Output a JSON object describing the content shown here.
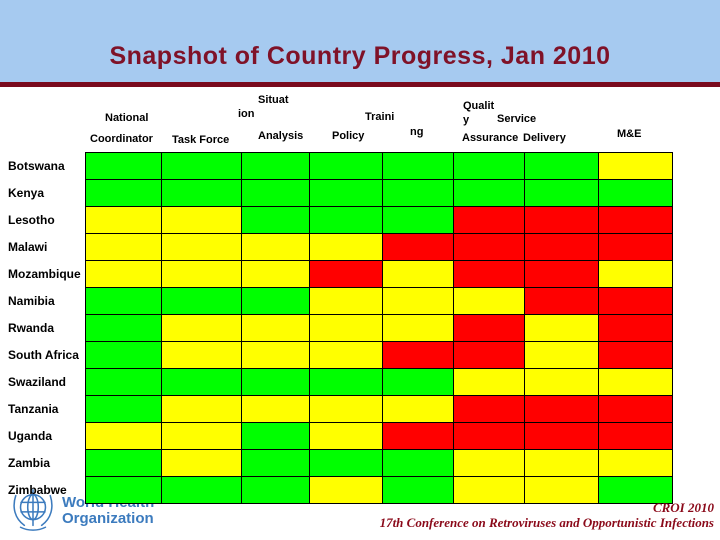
{
  "slide": {
    "title": "Snapshot of Country Progress, Jan 2010"
  },
  "header_words": [
    "National",
    "Coordinator",
    "Task Force",
    "Situat",
    "ion",
    "Analysis",
    "Policy",
    "Traini",
    "ng",
    "Qualit",
    "y",
    "Service",
    "Assurance",
    "Delivery",
    "M&E"
  ],
  "chart_data": {
    "type": "heatmap",
    "title": "Snapshot of Country Progress, Jan 2010",
    "columns": [
      "National Coordinator",
      "Task Force",
      "Situation Analysis",
      "Policy",
      "Training",
      "Quality Assurance",
      "Service Delivery",
      "M&E"
    ],
    "rows": [
      "Botswana",
      "Kenya",
      "Lesotho",
      "Malawi",
      "Mozambique",
      "Namibia",
      "Rwanda",
      "South Africa",
      "Swaziland",
      "Tanzania",
      "Uganda",
      "Zambia",
      "Zimbabwe"
    ],
    "cells": [
      [
        "green",
        "green",
        "green",
        "green",
        "green",
        "green",
        "green",
        "yellow"
      ],
      [
        "green",
        "green",
        "green",
        "green",
        "green",
        "green",
        "green",
        "green"
      ],
      [
        "yellow",
        "yellow",
        "green",
        "green",
        "green",
        "red",
        "red",
        "red"
      ],
      [
        "yellow",
        "yellow",
        "yellow",
        "yellow",
        "red",
        "red",
        "red",
        "red"
      ],
      [
        "yellow",
        "yellow",
        "yellow",
        "red",
        "yellow",
        "red",
        "red",
        "yellow"
      ],
      [
        "green",
        "green",
        "green",
        "yellow",
        "yellow",
        "yellow",
        "red",
        "red"
      ],
      [
        "green",
        "yellow",
        "yellow",
        "yellow",
        "yellow",
        "red",
        "yellow",
        "red"
      ],
      [
        "green",
        "yellow",
        "yellow",
        "yellow",
        "red",
        "red",
        "yellow",
        "red"
      ],
      [
        "green",
        "green",
        "green",
        "green",
        "green",
        "yellow",
        "yellow",
        "yellow"
      ],
      [
        "green",
        "yellow",
        "yellow",
        "yellow",
        "yellow",
        "red",
        "red",
        "red"
      ],
      [
        "yellow",
        "yellow",
        "green",
        "yellow",
        "red",
        "red",
        "red",
        "red"
      ],
      [
        "green",
        "yellow",
        "green",
        "green",
        "green",
        "yellow",
        "yellow",
        "yellow"
      ],
      [
        "green",
        "green",
        "green",
        "yellow",
        "green",
        "yellow",
        "yellow",
        "green"
      ]
    ],
    "status_colors": {
      "green": "#00FF00",
      "yellow": "#FFFF00",
      "red": "#FF0000"
    },
    "grid": true,
    "legend_position": "none"
  },
  "footer": {
    "who_line1": "World Health",
    "who_line2": "Organization",
    "conference_line1": "CROI 2010",
    "conference_line2": "17th Conference on Retroviruses and Opportunistic Infections"
  },
  "colors": {
    "header_bg": "#A6CAF0",
    "title_text": "#7F1228",
    "divider": "#7A0A1E",
    "who_blue": "#3C7BBE",
    "conference_text": "#8B0A1A"
  }
}
